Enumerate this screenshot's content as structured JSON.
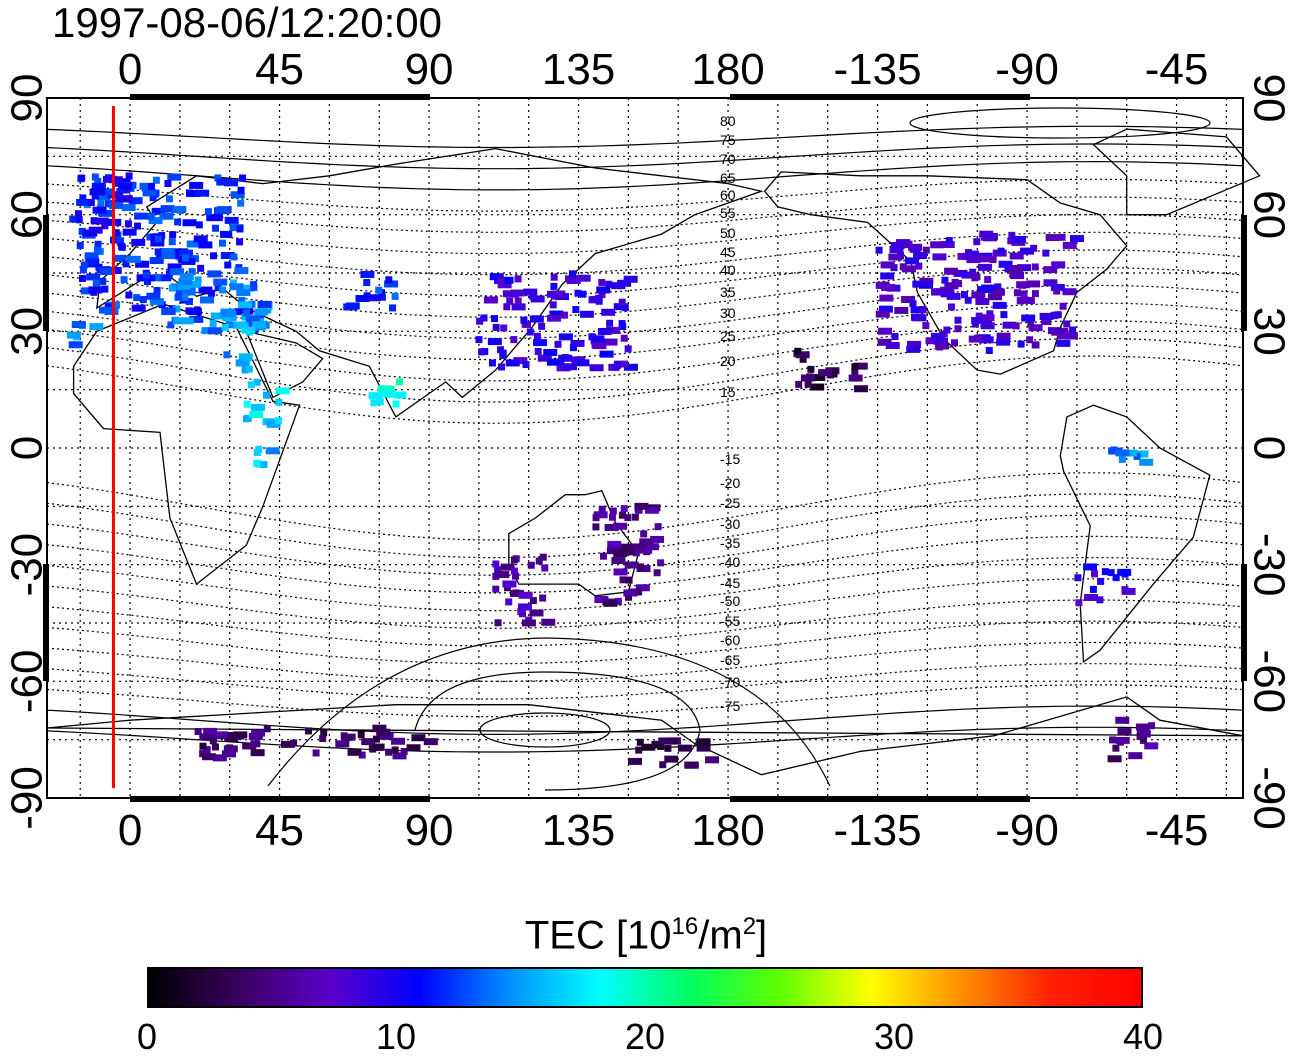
{
  "title": "1997-08-06/12:20:00",
  "colorbar": {
    "label_prefix": "TEC  [10",
    "label_exp1": "16",
    "label_mid": "/m",
    "label_exp2": "2",
    "label_suffix": "]",
    "min": 0,
    "max": 40,
    "ticks": [
      "0",
      "10",
      "20",
      "30",
      "40"
    ],
    "colors": [
      "#000000",
      "#3a0060",
      "#5a00c8",
      "#0000ff",
      "#0090ff",
      "#00ffff",
      "#00ff60",
      "#60ff00",
      "#ffff00",
      "#ff9000",
      "#ff2000",
      "#ff0000"
    ]
  },
  "axes": {
    "top_lon_ticks": [
      "0",
      "45",
      "90",
      "135",
      "180",
      "-135",
      "-90",
      "-45"
    ],
    "bottom_lon_ticks": [
      "0",
      "45",
      "90",
      "135",
      "180",
      "-135",
      "-90",
      "-45"
    ],
    "left_lat_ticks": [
      "90",
      "60",
      "30",
      "0",
      "-30",
      "-60",
      "-90"
    ],
    "right_lat_ticks": [
      "90",
      "60",
      "30",
      "0",
      "-30",
      "-60",
      "-90"
    ]
  },
  "contour_labels": [
    "80",
    "75",
    "70",
    "65",
    "60",
    "55",
    "50",
    "45",
    "40",
    "35",
    "30",
    "25",
    "20",
    "15",
    "-15",
    "-20",
    "-25",
    "-30",
    "-35",
    "-40",
    "-45",
    "-50",
    "-55",
    "-60",
    "-65",
    "-70",
    "-75"
  ],
  "chart_data": {
    "type": "heatmap",
    "title": "1997-08-06/12:20:00",
    "xlabel": "",
    "ylabel": "",
    "xlim": [
      -25,
      335
    ],
    "ylim": [
      -90,
      90
    ],
    "value_label": "TEC [10^16/m^2]",
    "value_range": [
      0,
      40
    ],
    "terminator_lon": -5,
    "regions": [
      {
        "lon": [
          -15,
          35
        ],
        "lat": [
          35,
          70
        ],
        "value": 12
      },
      {
        "lon": [
          -20,
          0
        ],
        "lat": [
          55,
          70
        ],
        "value": 11
      },
      {
        "lon": [
          -18,
          -10
        ],
        "lat": [
          25,
          32
        ],
        "value": 14
      },
      {
        "lon": [
          10,
          40
        ],
        "lat": [
          30,
          45
        ],
        "value": 14
      },
      {
        "lon": [
          28,
          38
        ],
        "lat": [
          20,
          38
        ],
        "value": 15
      },
      {
        "lon": [
          35,
          45
        ],
        "lat": [
          5,
          18
        ],
        "value": 17
      },
      {
        "lon": [
          38,
          42
        ],
        "lat": [
          -5,
          0
        ],
        "value": 16
      },
      {
        "lon": [
          65,
          80
        ],
        "lat": [
          36,
          45
        ],
        "value": 12
      },
      {
        "lon": [
          72,
          82
        ],
        "lat": [
          10,
          20
        ],
        "value": 19
      },
      {
        "lon": [
          105,
          150
        ],
        "lat": [
          20,
          45
        ],
        "value": 9
      },
      {
        "lon": [
          110,
          125
        ],
        "lat": [
          -45,
          -25
        ],
        "value": 6
      },
      {
        "lon": [
          140,
          160
        ],
        "lat": [
          -40,
          -15
        ],
        "value": 5
      },
      {
        "lon": [
          225,
          285
        ],
        "lat": [
          25,
          55
        ],
        "value": 8
      },
      {
        "lon": [
          200,
          220
        ],
        "lat": [
          15,
          25
        ],
        "value": 3
      },
      {
        "lon": [
          285,
          300
        ],
        "lat": [
          -40,
          -30
        ],
        "value": 9
      },
      {
        "lon": [
          295,
          310
        ],
        "lat": [
          -5,
          0
        ],
        "value": 14
      },
      {
        "lon": [
          20,
          90
        ],
        "lat": [
          -80,
          -72
        ],
        "value": 4
      },
      {
        "lon": [
          150,
          175
        ],
        "lat": [
          -82,
          -75
        ],
        "value": 3
      },
      {
        "lon": [
          295,
          310
        ],
        "lat": [
          -80,
          -70
        ],
        "value": 5
      }
    ]
  }
}
